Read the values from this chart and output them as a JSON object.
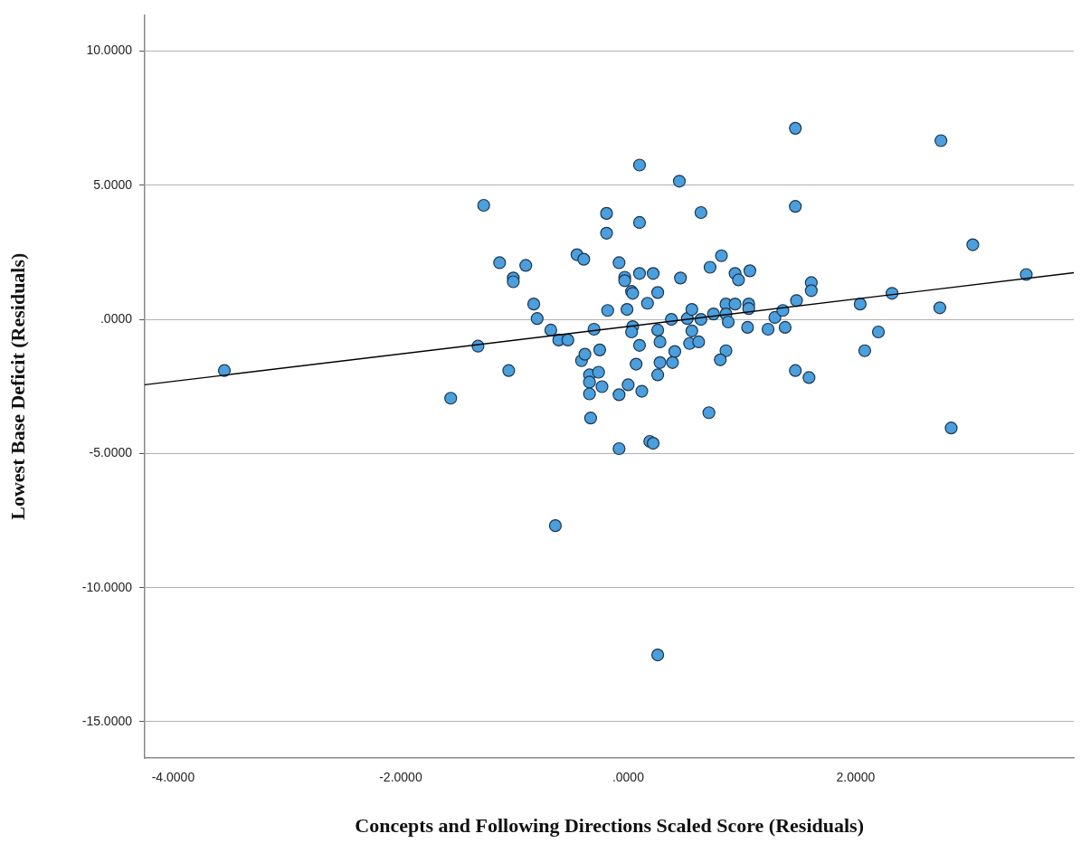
{
  "chart_data": {
    "type": "scatter",
    "xlabel": "Concepts and Following Directions Scaled Score (Residuals)",
    "ylabel": "Lowest Base Deficit (Residuals)",
    "xlim": [
      -4.25,
      3.92
    ],
    "ylim": [
      -16.35,
      11.35
    ],
    "xticks": [
      {
        "value": -4,
        "label": "-4.0000"
      },
      {
        "value": -2,
        "label": "-2.0000"
      },
      {
        "value": 0,
        "label": ".0000"
      },
      {
        "value": 2,
        "label": "2.0000"
      }
    ],
    "yticks": [
      {
        "value": -15,
        "label": "-15.0000"
      },
      {
        "value": -10,
        "label": "-10.0000"
      },
      {
        "value": -5,
        "label": "-5.0000"
      },
      {
        "value": 0,
        "label": ".0000"
      },
      {
        "value": 5,
        "label": "5.0000"
      },
      {
        "value": 10,
        "label": "10.0000"
      }
    ],
    "grid": "y",
    "legend": false,
    "marker": "circle",
    "series": [
      {
        "type": "scatter",
        "color": "#4a9fdc",
        "x": [
          -3.55,
          -1.56,
          -1.32,
          -1.27,
          -1.13,
          -1.05,
          -1.01,
          -1.01,
          -0.9,
          -0.83,
          -0.8,
          -0.68,
          -0.64,
          -0.61,
          -0.53,
          -0.45,
          -0.39,
          -0.41,
          -0.38,
          -0.34,
          -0.26,
          -0.34,
          -0.23,
          -0.34,
          -0.33,
          -0.3,
          -0.25,
          -0.19,
          -0.19,
          -0.18,
          -0.08,
          -0.08,
          -0.08,
          -0.03,
          -0.03,
          -0.01,
          0.0,
          0.03,
          0.04,
          0.04,
          0.03,
          0.07,
          0.1,
          0.1,
          0.1,
          0.1,
          0.12,
          0.17,
          0.19,
          0.22,
          0.22,
          0.26,
          0.26,
          0.28,
          0.28,
          0.26,
          0.26,
          0.45,
          0.46,
          0.72,
          0.82,
          0.94,
          0.97,
          1.07,
          0.64,
          0.38,
          0.52,
          0.56,
          0.64,
          0.75,
          0.86,
          0.94,
          0.86,
          0.88,
          1.06,
          1.06,
          1.05,
          1.23,
          1.29,
          1.36,
          1.38,
          0.56,
          0.54,
          0.62,
          0.41,
          0.39,
          0.86,
          0.81,
          0.71,
          1.48,
          1.47,
          1.47,
          1.47,
          1.59,
          1.61,
          1.61,
          2.04,
          2.08,
          2.2,
          2.32,
          2.74,
          2.75,
          2.84,
          3.03,
          3.5
        ],
        "values": [
          -1.91,
          -2.94,
          -1.0,
          4.25,
          2.11,
          -1.91,
          1.54,
          1.4,
          2.01,
          0.57,
          0.03,
          -0.4,
          -7.69,
          -0.77,
          -0.77,
          2.41,
          2.24,
          -1.54,
          -1.3,
          -2.07,
          -1.97,
          -2.34,
          -2.51,
          -2.78,
          -3.68,
          -0.37,
          -1.14,
          3.95,
          3.21,
          0.33,
          2.11,
          -2.81,
          -4.82,
          1.57,
          1.44,
          0.37,
          -2.44,
          1.04,
          0.97,
          -0.27,
          -0.47,
          -1.67,
          3.61,
          1.71,
          5.75,
          -0.97,
          -2.68,
          0.6,
          -4.55,
          -4.62,
          1.71,
          1.0,
          -0.4,
          -0.84,
          -1.61,
          -2.07,
          -12.51,
          5.15,
          1.54,
          1.94,
          2.37,
          1.71,
          1.47,
          1.81,
          3.98,
          0.0,
          0.03,
          0.37,
          0.0,
          0.2,
          0.57,
          0.57,
          0.2,
          -0.1,
          0.57,
          0.4,
          -0.3,
          -0.37,
          0.07,
          0.33,
          -0.3,
          -0.43,
          -0.9,
          -0.84,
          -1.2,
          -1.61,
          -1.17,
          -1.51,
          -3.48,
          0.7,
          7.12,
          4.21,
          -1.91,
          -2.17,
          1.37,
          1.07,
          0.57,
          -1.17,
          -0.47,
          0.97,
          0.43,
          6.66,
          -4.05,
          2.78,
          1.67
        ]
      },
      {
        "type": "line",
        "color": "#000000",
        "marker": "none",
        "x": [
          -4.25,
          3.92
        ],
        "values": [
          -2.44,
          1.74
        ]
      }
    ]
  }
}
